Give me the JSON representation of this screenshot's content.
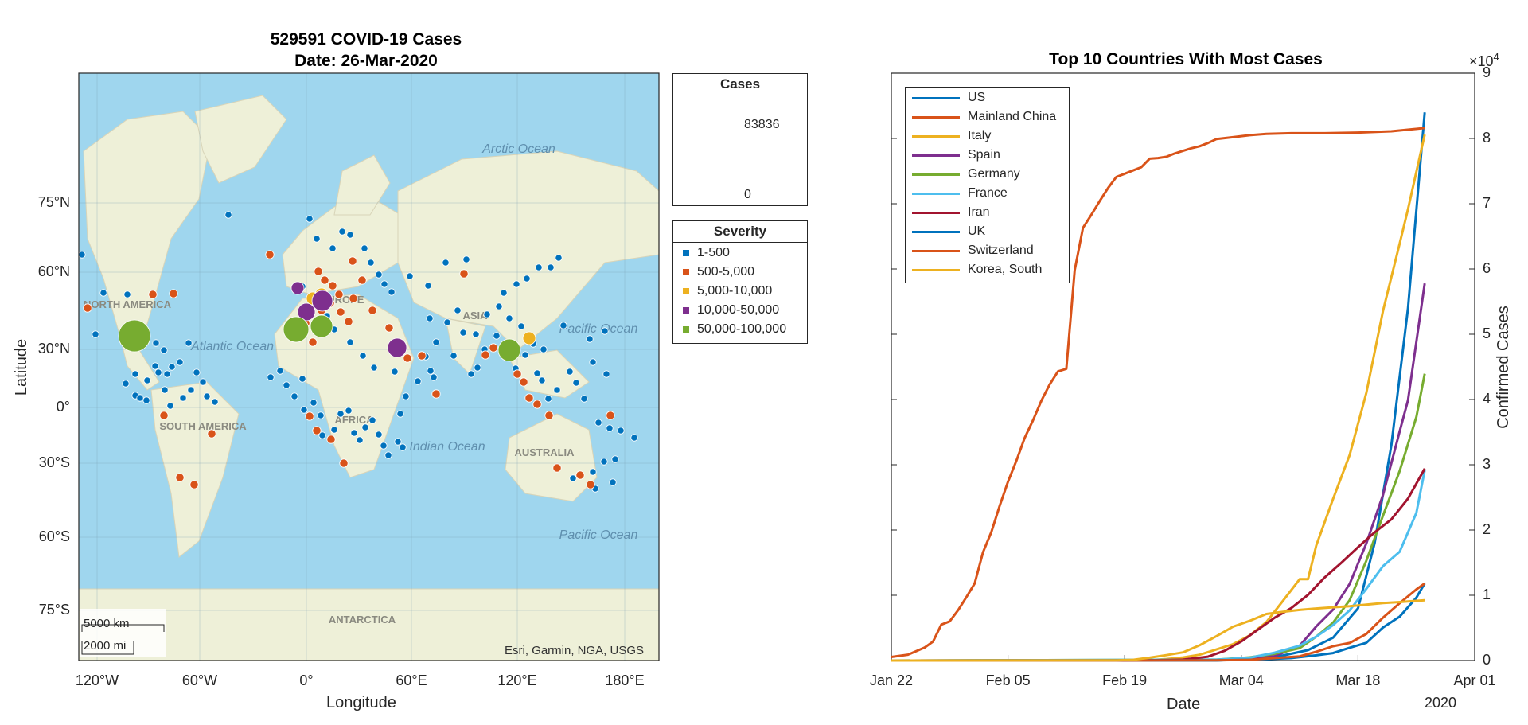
{
  "colors": {
    "blue": "#0072BD",
    "orange": "#D95319",
    "yellow": "#EDB120",
    "purple": "#7E2F8E",
    "green": "#77AC30",
    "lightblue": "#4DBEEE",
    "darkred": "#A2142F",
    "ocean": "#9fd6ee",
    "land": "#eef0d8",
    "bubble_gray": "#c8c8c8"
  },
  "map": {
    "title_line1": "529591 COVID-19 Cases",
    "title_line2": "Date: 26-Mar-2020",
    "xlabel": "Longitude",
    "ylabel": "Latitude",
    "lon_ticks": [
      "120°W",
      "60°W",
      "0°",
      "60°E",
      "120°E",
      "180°E"
    ],
    "lat_ticks": [
      "75°N",
      "60°N",
      "30°N",
      "0°",
      "30°S",
      "60°S",
      "75°S"
    ],
    "attribution": "Esri, Garmin, NGA, USGS",
    "scale_km": "5000 km",
    "scale_mi": "2000 mi",
    "basemap_labels": [
      "Arctic Ocean",
      "Atlantic Ocean",
      "Pacific Ocean",
      "Indian Ocean",
      "Pacific Ocean",
      "NORTH AMERICA",
      "SOUTH AMERICA",
      "EUROPE",
      "AFRICA",
      "ASIA",
      "AUSTRALIA",
      "ANTARCTICA"
    ],
    "cases_legend": {
      "title": "Cases",
      "max": "83836",
      "min": "0"
    },
    "severity_legend": {
      "title": "Severity",
      "items": [
        {
          "label": "1-500",
          "color": "#0072BD"
        },
        {
          "label": "500-5,000",
          "color": "#D95319"
        },
        {
          "label": "5,000-10,000",
          "color": "#EDB120"
        },
        {
          "label": "10,000-50,000",
          "color": "#7E2F8E"
        },
        {
          "label": "50,000-100,000",
          "color": "#77AC30"
        }
      ]
    }
  },
  "chart_data": {
    "type": "line",
    "title": "Top 10 Countries With Most Cases",
    "xlabel": "Date",
    "ylabel": "Confirmed Cases",
    "x_tick_labels": [
      "Jan 22",
      "Feb 05",
      "Feb 19",
      "Mar 04",
      "Mar 18",
      "Apr 01"
    ],
    "x_year_label": "2020",
    "x_range": [
      "2020-01-22",
      "2020-04-01"
    ],
    "y_exponent_label": "×10",
    "y_exponent": "4",
    "y_tick_labels": [
      "0",
      "1",
      "2",
      "3",
      "4",
      "5",
      "6",
      "7",
      "8",
      "9"
    ],
    "ylim": [
      0,
      90000
    ],
    "legend_placement": "top-left",
    "series": [
      {
        "name": "US",
        "color": "#0072BD",
        "points": [
          [
            "2020-01-22",
            0
          ],
          [
            "2020-03-01",
            0
          ],
          [
            "2020-03-08",
            500
          ],
          [
            "2020-03-12",
            1600
          ],
          [
            "2020-03-15",
            3500
          ],
          [
            "2020-03-18",
            8000
          ],
          [
            "2020-03-20",
            18000
          ],
          [
            "2020-03-22",
            33000
          ],
          [
            "2020-03-24",
            54000
          ],
          [
            "2020-03-26",
            84000
          ]
        ]
      },
      {
        "name": "Mainland China",
        "color": "#D95319",
        "points": [
          [
            "2020-01-22",
            550
          ],
          [
            "2020-01-24",
            900
          ],
          [
            "2020-01-26",
            2000
          ],
          [
            "2020-01-27",
            2900
          ],
          [
            "2020-01-28",
            5500
          ],
          [
            "2020-01-29",
            6000
          ],
          [
            "2020-01-30",
            7700
          ],
          [
            "2020-01-31",
            9700
          ],
          [
            "2020-02-01",
            11800
          ],
          [
            "2020-02-02",
            16600
          ],
          [
            "2020-02-03",
            19700
          ],
          [
            "2020-02-04",
            23700
          ],
          [
            "2020-02-05",
            27400
          ],
          [
            "2020-02-06",
            30600
          ],
          [
            "2020-02-07",
            34100
          ],
          [
            "2020-02-08",
            36800
          ],
          [
            "2020-02-09",
            39800
          ],
          [
            "2020-02-10",
            42300
          ],
          [
            "2020-02-11",
            44300
          ],
          [
            "2020-02-12",
            44700
          ],
          [
            "2020-02-13",
            59800
          ],
          [
            "2020-02-14",
            66300
          ],
          [
            "2020-02-15",
            68300
          ],
          [
            "2020-02-16",
            70400
          ],
          [
            "2020-02-17",
            72400
          ],
          [
            "2020-02-18",
            74100
          ],
          [
            "2020-02-19",
            74600
          ],
          [
            "2020-02-20",
            75100
          ],
          [
            "2020-02-21",
            75600
          ],
          [
            "2020-02-22",
            76900
          ],
          [
            "2020-02-23",
            77000
          ],
          [
            "2020-02-24",
            77200
          ],
          [
            "2020-02-25",
            77700
          ],
          [
            "2020-02-26",
            78100
          ],
          [
            "2020-02-27",
            78500
          ],
          [
            "2020-02-28",
            78800
          ],
          [
            "2020-02-29",
            79300
          ],
          [
            "2020-03-01",
            79900
          ],
          [
            "2020-03-03",
            80200
          ],
          [
            "2020-03-05",
            80500
          ],
          [
            "2020-03-07",
            80700
          ],
          [
            "2020-03-10",
            80800
          ],
          [
            "2020-03-14",
            80800
          ],
          [
            "2020-03-18",
            80900
          ],
          [
            "2020-03-22",
            81100
          ],
          [
            "2020-03-26",
            81600
          ]
        ]
      },
      {
        "name": "Italy",
        "color": "#EDB120",
        "points": [
          [
            "2020-01-22",
            0
          ],
          [
            "2020-02-20",
            3
          ],
          [
            "2020-02-22",
            62
          ],
          [
            "2020-02-24",
            229
          ],
          [
            "2020-02-26",
            470
          ],
          [
            "2020-02-28",
            888
          ],
          [
            "2020-03-01",
            1694
          ],
          [
            "2020-03-03",
            2502
          ],
          [
            "2020-03-05",
            3858
          ],
          [
            "2020-03-07",
            5883
          ],
          [
            "2020-03-09",
            9172
          ],
          [
            "2020-03-11",
            12462
          ],
          [
            "2020-03-12",
            12462
          ],
          [
            "2020-03-13",
            17660
          ],
          [
            "2020-03-15",
            24747
          ],
          [
            "2020-03-17",
            31506
          ],
          [
            "2020-03-19",
            41035
          ],
          [
            "2020-03-21",
            53578
          ],
          [
            "2020-03-23",
            63927
          ],
          [
            "2020-03-24",
            69176
          ],
          [
            "2020-03-26",
            80589
          ]
        ]
      },
      {
        "name": "Spain",
        "color": "#7E2F8E",
        "points": [
          [
            "2020-01-22",
            0
          ],
          [
            "2020-03-01",
            84
          ],
          [
            "2020-03-05",
            282
          ],
          [
            "2020-03-08",
            673
          ],
          [
            "2020-03-11",
            2277
          ],
          [
            "2020-03-13",
            5232
          ],
          [
            "2020-03-15",
            7798
          ],
          [
            "2020-03-17",
            11748
          ],
          [
            "2020-03-19",
            17963
          ],
          [
            "2020-03-21",
            25374
          ],
          [
            "2020-03-23",
            35136
          ],
          [
            "2020-03-24",
            39885
          ],
          [
            "2020-03-26",
            57786
          ]
        ]
      },
      {
        "name": "Germany",
        "color": "#77AC30",
        "points": [
          [
            "2020-01-22",
            0
          ],
          [
            "2020-03-01",
            130
          ],
          [
            "2020-03-05",
            482
          ],
          [
            "2020-03-08",
            1040
          ],
          [
            "2020-03-11",
            1908
          ],
          [
            "2020-03-13",
            3675
          ],
          [
            "2020-03-15",
            5795
          ],
          [
            "2020-03-17",
            9257
          ],
          [
            "2020-03-19",
            15320
          ],
          [
            "2020-03-21",
            22213
          ],
          [
            "2020-03-23",
            29056
          ],
          [
            "2020-03-25",
            37323
          ],
          [
            "2020-03-26",
            43938
          ]
        ]
      },
      {
        "name": "France",
        "color": "#4DBEEE",
        "points": [
          [
            "2020-01-22",
            0
          ],
          [
            "2020-03-01",
            130
          ],
          [
            "2020-03-05",
            423
          ],
          [
            "2020-03-08",
            1209
          ],
          [
            "2020-03-11",
            2284
          ],
          [
            "2020-03-13",
            3667
          ],
          [
            "2020-03-15",
            5423
          ],
          [
            "2020-03-17",
            7699
          ],
          [
            "2020-03-19",
            10995
          ],
          [
            "2020-03-21",
            14459
          ],
          [
            "2020-03-23",
            16689
          ],
          [
            "2020-03-25",
            22622
          ],
          [
            "2020-03-26",
            29155
          ]
        ]
      },
      {
        "name": "Iran",
        "color": "#A2142F",
        "points": [
          [
            "2020-01-22",
            0
          ],
          [
            "2020-02-19",
            2
          ],
          [
            "2020-02-23",
            43
          ],
          [
            "2020-02-26",
            139
          ],
          [
            "2020-02-29",
            593
          ],
          [
            "2020-03-02",
            1501
          ],
          [
            "2020-03-04",
            2922
          ],
          [
            "2020-03-06",
            4747
          ],
          [
            "2020-03-08",
            6566
          ],
          [
            "2020-03-10",
            8042
          ],
          [
            "2020-03-12",
            10075
          ],
          [
            "2020-03-14",
            12729
          ],
          [
            "2020-03-16",
            14991
          ],
          [
            "2020-03-18",
            17361
          ],
          [
            "2020-03-20",
            19644
          ],
          [
            "2020-03-22",
            21638
          ],
          [
            "2020-03-24",
            24811
          ],
          [
            "2020-03-26",
            29406
          ]
        ]
      },
      {
        "name": "UK",
        "color": "#0072BD",
        "points": [
          [
            "2020-01-22",
            0
          ],
          [
            "2020-03-01",
            36
          ],
          [
            "2020-03-06",
            164
          ],
          [
            "2020-03-10",
            384
          ],
          [
            "2020-03-13",
            801
          ],
          [
            "2020-03-15",
            1144
          ],
          [
            "2020-03-17",
            1960
          ],
          [
            "2020-03-19",
            2716
          ],
          [
            "2020-03-21",
            5067
          ],
          [
            "2020-03-23",
            6726
          ],
          [
            "2020-03-25",
            9640
          ],
          [
            "2020-03-26",
            11812
          ]
        ]
      },
      {
        "name": "Switzerland",
        "color": "#D95319",
        "points": [
          [
            "2020-01-22",
            0
          ],
          [
            "2020-03-01",
            27
          ],
          [
            "2020-03-05",
            114
          ],
          [
            "2020-03-08",
            374
          ],
          [
            "2020-03-11",
            652
          ],
          [
            "2020-03-13",
            1359
          ],
          [
            "2020-03-15",
            2200
          ],
          [
            "2020-03-17",
            2700
          ],
          [
            "2020-03-19",
            4075
          ],
          [
            "2020-03-21",
            6575
          ],
          [
            "2020-03-23",
            8795
          ],
          [
            "2020-03-25",
            10897
          ],
          [
            "2020-03-26",
            11811
          ]
        ]
      },
      {
        "name": "Korea, South",
        "color": "#EDB120",
        "points": [
          [
            "2020-01-22",
            1
          ],
          [
            "2020-02-18",
            31
          ],
          [
            "2020-02-20",
            104
          ],
          [
            "2020-02-22",
            433
          ],
          [
            "2020-02-24",
            833
          ],
          [
            "2020-02-26",
            1261
          ],
          [
            "2020-02-28",
            2337
          ],
          [
            "2020-03-01",
            3736
          ],
          [
            "2020-03-03",
            5186
          ],
          [
            "2020-03-05",
            6088
          ],
          [
            "2020-03-07",
            7134
          ],
          [
            "2020-03-09",
            7478
          ],
          [
            "2020-03-11",
            7755
          ],
          [
            "2020-03-13",
            7979
          ],
          [
            "2020-03-15",
            8162
          ],
          [
            "2020-03-17",
            8320
          ],
          [
            "2020-03-19",
            8565
          ],
          [
            "2020-03-21",
            8799
          ],
          [
            "2020-03-23",
            8961
          ],
          [
            "2020-03-26",
            9241
          ]
        ]
      }
    ]
  }
}
